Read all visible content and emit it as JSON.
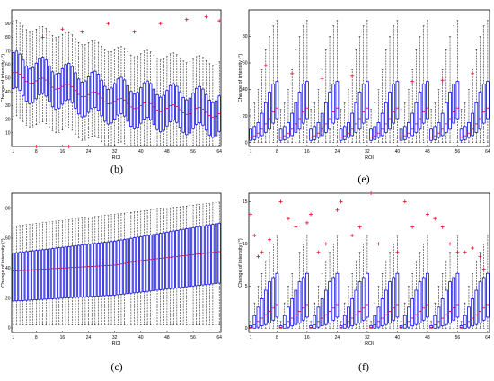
{
  "chart_data": [
    {
      "id": "b",
      "panel_label": "(b)",
      "type": "boxplot",
      "xlabel": "ROI",
      "ylabel": "Change of intensity (°)",
      "x_ticks": [
        1,
        8,
        16,
        24,
        32,
        40,
        48,
        56,
        64
      ],
      "y_ticks": [
        10,
        20,
        30,
        40,
        50,
        60,
        70,
        80,
        90
      ],
      "ylim": [
        0,
        100
      ],
      "n_boxes": 64,
      "box_color": "#1010e0",
      "median_color": "#e0102a",
      "outlier_color": "#e0102a",
      "median_trend": [
        {
          "x": 1,
          "y": 52
        },
        {
          "x": 8,
          "y": 48
        },
        {
          "x": 16,
          "y": 44
        },
        {
          "x": 24,
          "y": 38
        },
        {
          "x": 32,
          "y": 33
        },
        {
          "x": 40,
          "y": 30
        },
        {
          "x": 48,
          "y": 28
        },
        {
          "x": 56,
          "y": 26
        },
        {
          "x": 64,
          "y": 24
        }
      ],
      "box_half_range": 13,
      "whisker_half_range": 32,
      "outliers_top": [
        {
          "x": 10,
          "y": 80
        },
        {
          "x": 16,
          "y": 86
        },
        {
          "x": 22,
          "y": 84
        },
        {
          "x": 30,
          "y": 90
        },
        {
          "x": 38,
          "y": 84
        },
        {
          "x": 46,
          "y": 90
        },
        {
          "x": 54,
          "y": 93
        },
        {
          "x": 60,
          "y": 95
        },
        {
          "x": 64,
          "y": 92
        }
      ],
      "outliers_bottom": [
        {
          "x": 8,
          "y": 0
        },
        {
          "x": 18,
          "y": 0
        }
      ]
    },
    {
      "id": "e",
      "panel_label": "(e)",
      "type": "boxplot",
      "xlabel": "ROI",
      "ylabel": "Change of intensity (°)",
      "x_ticks": [
        1,
        8,
        16,
        24,
        32,
        40,
        48,
        56,
        64
      ],
      "y_ticks": [
        0,
        20,
        40,
        60,
        80
      ],
      "ylim": [
        -3,
        100
      ],
      "n_boxes": 64,
      "box_color": "#1010e0",
      "median_color": "#e0102a",
      "outlier_color": "#e0102a",
      "period": 8,
      "cycle_medians": [
        4,
        5,
        7,
        10,
        14,
        18,
        23,
        26
      ],
      "cycle_q3": [
        10,
        12,
        15,
        22,
        30,
        38,
        44,
        46
      ],
      "cycle_whisker_top": [
        25,
        30,
        40,
        55,
        70,
        80,
        88,
        92
      ],
      "outliers": [
        {
          "x": 5,
          "y": 58
        },
        {
          "x": 12,
          "y": 52
        },
        {
          "x": 20,
          "y": 48
        },
        {
          "x": 28,
          "y": 50
        },
        {
          "x": 44,
          "y": 46
        },
        {
          "x": 52,
          "y": 47
        },
        {
          "x": 60,
          "y": 52
        }
      ]
    },
    {
      "id": "c",
      "panel_label": "(c)",
      "type": "boxplot",
      "xlabel": "ROI",
      "ylabel": "Change of intensity (°)",
      "x_ticks": [
        1,
        8,
        16,
        24,
        32,
        40,
        48,
        56,
        64
      ],
      "y_ticks": [
        0,
        20,
        40,
        60,
        80
      ],
      "ylim": [
        -3,
        90
      ],
      "n_boxes": 64,
      "box_color": "#1010e0",
      "median_color": "#e0102a",
      "median_trend": [
        {
          "x": 1,
          "y": 38
        },
        {
          "x": 8,
          "y": 39
        },
        {
          "x": 16,
          "y": 40
        },
        {
          "x": 24,
          "y": 41
        },
        {
          "x": 32,
          "y": 42
        },
        {
          "x": 40,
          "y": 45
        },
        {
          "x": 48,
          "y": 47
        },
        {
          "x": 56,
          "y": 49
        },
        {
          "x": 64,
          "y": 51
        }
      ],
      "q1_trend": [
        {
          "x": 1,
          "y": 18
        },
        {
          "x": 32,
          "y": 22
        },
        {
          "x": 64,
          "y": 30
        }
      ],
      "q3_trend": [
        {
          "x": 1,
          "y": 50
        },
        {
          "x": 32,
          "y": 58
        },
        {
          "x": 64,
          "y": 70
        }
      ],
      "whisker_low": 2,
      "whisker_high_trend": [
        {
          "x": 1,
          "y": 68
        },
        {
          "x": 32,
          "y": 76
        },
        {
          "x": 64,
          "y": 84
        }
      ]
    },
    {
      "id": "f",
      "panel_label": "(f)",
      "type": "boxplot",
      "xlabel": "ROI",
      "ylabel": "Change of intensity (°)",
      "x_ticks": [
        1,
        8,
        16,
        24,
        32,
        40,
        48,
        56,
        64
      ],
      "y_ticks": [
        0,
        5,
        10,
        15
      ],
      "ylim": [
        -0.5,
        16
      ],
      "n_boxes": 64,
      "box_color": "#1010e0",
      "median_color": "#e0102a",
      "outlier_color": "#e0102a",
      "period": 8,
      "cycle_q3": [
        0.3,
        1.5,
        2.5,
        3.5,
        4.5,
        5.5,
        6.0,
        6.5
      ],
      "cycle_medians": [
        0.1,
        0.4,
        0.8,
        1.2,
        1.6,
        2.0,
        2.4,
        2.8
      ],
      "cycle_whisker_top": [
        0.8,
        3.0,
        5.0,
        6.5,
        8.0,
        9.0,
        10.0,
        11.0
      ],
      "outliers": [
        {
          "x": 1,
          "y": 13.5
        },
        {
          "x": 2,
          "y": 11
        },
        {
          "x": 3,
          "y": 8.5
        },
        {
          "x": 4,
          "y": 9
        },
        {
          "x": 6,
          "y": 10.5
        },
        {
          "x": 9,
          "y": 15
        },
        {
          "x": 11,
          "y": 13
        },
        {
          "x": 13,
          "y": 12
        },
        {
          "x": 16,
          "y": 12.5
        },
        {
          "x": 17,
          "y": 13.5
        },
        {
          "x": 19,
          "y": 9
        },
        {
          "x": 21,
          "y": 10
        },
        {
          "x": 24,
          "y": 14
        },
        {
          "x": 25,
          "y": 15
        },
        {
          "x": 28,
          "y": 11
        },
        {
          "x": 30,
          "y": 12
        },
        {
          "x": 33,
          "y": 16
        },
        {
          "x": 35,
          "y": 10
        },
        {
          "x": 40,
          "y": 9
        },
        {
          "x": 42,
          "y": 15
        },
        {
          "x": 44,
          "y": 12
        },
        {
          "x": 48,
          "y": 13.5
        },
        {
          "x": 50,
          "y": 13
        },
        {
          "x": 52,
          "y": 12
        },
        {
          "x": 54,
          "y": 10
        },
        {
          "x": 56,
          "y": 9
        },
        {
          "x": 58,
          "y": 9
        },
        {
          "x": 60,
          "y": 9.5
        },
        {
          "x": 62,
          "y": 8.5
        },
        {
          "x": 63,
          "y": 7
        }
      ]
    }
  ]
}
